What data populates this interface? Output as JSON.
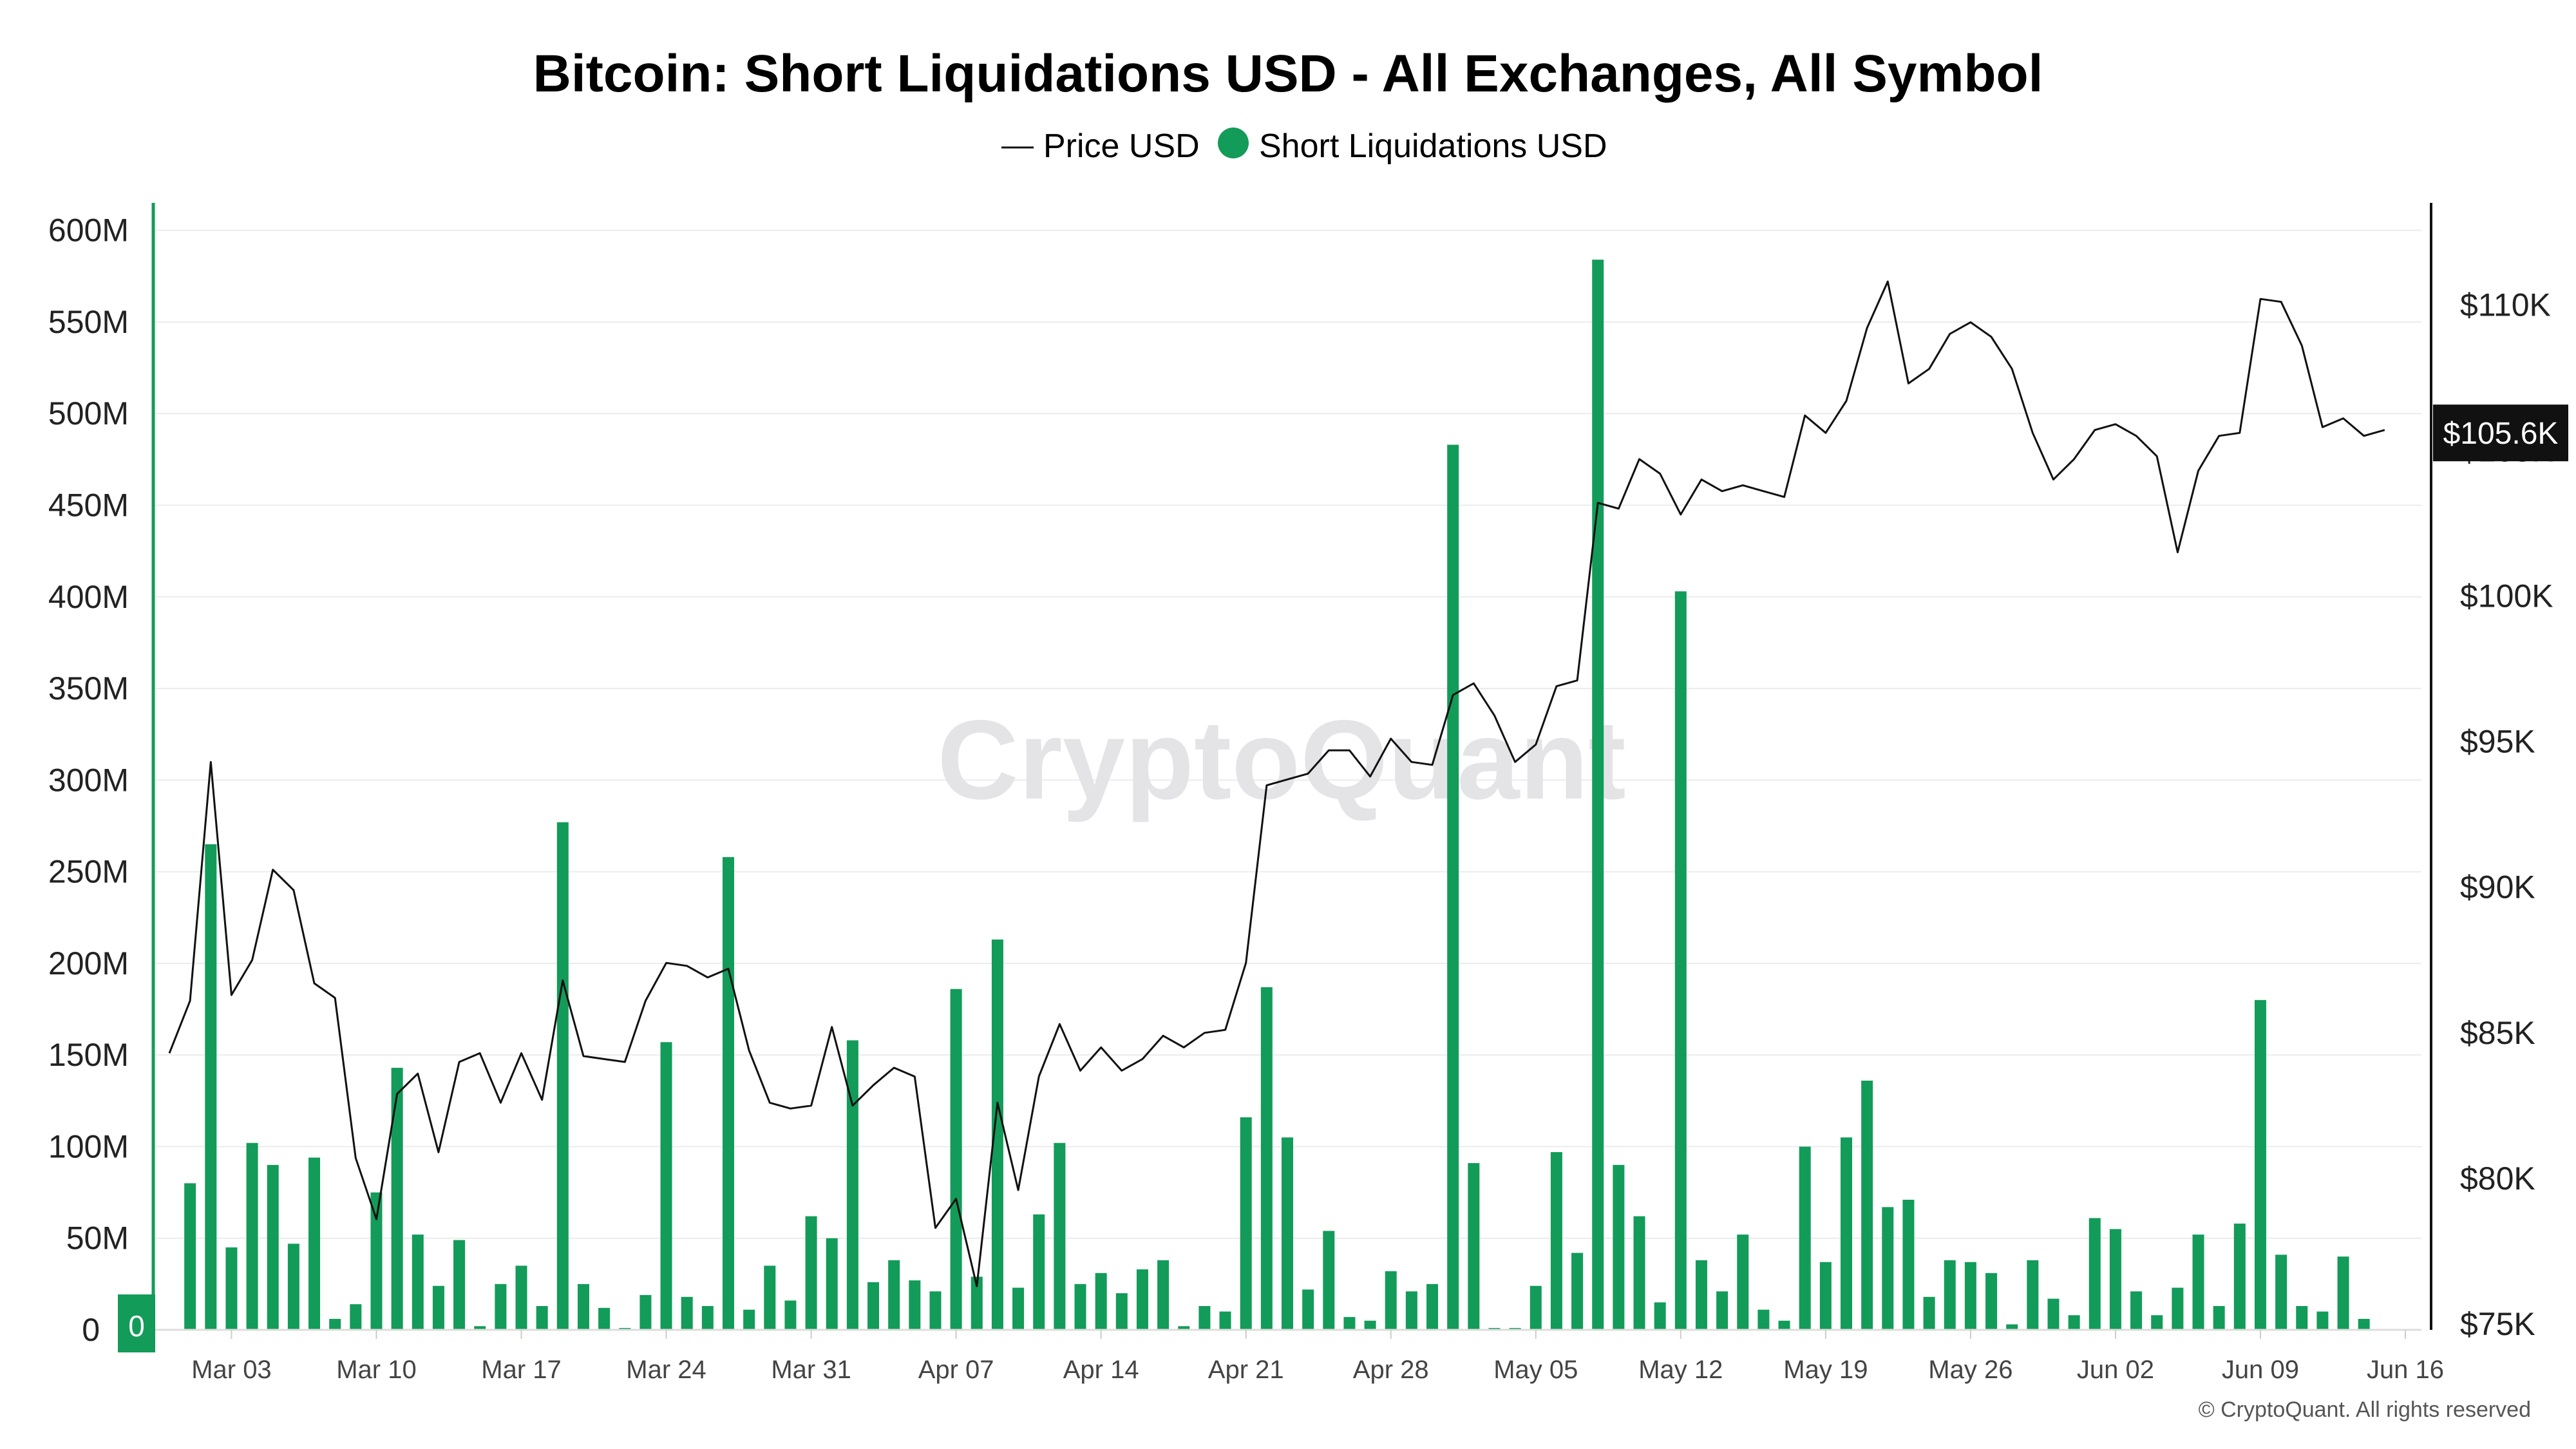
{
  "colors": {
    "bar": "#139b59",
    "axis_left": "#139b59",
    "price_line": "#111111",
    "grid": "#ececec",
    "price_tag_bg": "#111111",
    "watermark": "#e4e4e7"
  },
  "watermark": "CryptoQuant",
  "copyright": "© CryptoQuant. All rights reserved",
  "left_zero_tag": "0",
  "chart_data": {
    "type": "bar",
    "title": "Bitcoin: Short Liquidations USD - All Exchanges, All Symbol",
    "legend": [
      "Price USD",
      "Short Liquidations USD"
    ],
    "legend_placement": "top-center",
    "grid": true,
    "x_start": "2025-02-28",
    "x_ticks": [
      "Mar 03",
      "Mar 10",
      "Mar 17",
      "Mar 24",
      "Mar 31",
      "Apr 07",
      "Apr 14",
      "Apr 21",
      "Apr 28",
      "May 05",
      "May 12",
      "May 19",
      "May 26",
      "Jun 02",
      "Jun 09",
      "Jun 16"
    ],
    "y_left": {
      "label": "",
      "ticks": [
        "0",
        "50M",
        "100M",
        "150M",
        "200M",
        "250M",
        "300M",
        "350M",
        "400M",
        "450M",
        "500M",
        "550M",
        "600M"
      ],
      "ylim": [
        0,
        615000000
      ]
    },
    "y_right": {
      "label": "",
      "ticks": [
        "$75K",
        "$80K",
        "$85K",
        "$90K",
        "$95K",
        "$100K",
        "$105K",
        "$110K"
      ],
      "ylim": [
        74800,
        113500
      ],
      "current_value_label": "$105.6K",
      "current_value": 105600
    },
    "series": [
      {
        "name": "Short Liquidations USD",
        "type": "bar",
        "dates": [
          "2025-03-01",
          "2025-03-02",
          "2025-03-03",
          "2025-03-04",
          "2025-03-05",
          "2025-03-06",
          "2025-03-07",
          "2025-03-08",
          "2025-03-09",
          "2025-03-10",
          "2025-03-11",
          "2025-03-12",
          "2025-03-13",
          "2025-03-14",
          "2025-03-15",
          "2025-03-16",
          "2025-03-17",
          "2025-03-18",
          "2025-03-19",
          "2025-03-20",
          "2025-03-21",
          "2025-03-22",
          "2025-03-23",
          "2025-03-24",
          "2025-03-25",
          "2025-03-26",
          "2025-03-27",
          "2025-03-28",
          "2025-03-29",
          "2025-03-30",
          "2025-03-31",
          "2025-04-01",
          "2025-04-02",
          "2025-04-03",
          "2025-04-04",
          "2025-04-05",
          "2025-04-06",
          "2025-04-07",
          "2025-04-08",
          "2025-04-09",
          "2025-04-10",
          "2025-04-11",
          "2025-04-12",
          "2025-04-13",
          "2025-04-14",
          "2025-04-15",
          "2025-04-16",
          "2025-04-17",
          "2025-04-18",
          "2025-04-19",
          "2025-04-20",
          "2025-04-21",
          "2025-04-22",
          "2025-04-23",
          "2025-04-24",
          "2025-04-25",
          "2025-04-26",
          "2025-04-27",
          "2025-04-28",
          "2025-04-29",
          "2025-04-30",
          "2025-05-01",
          "2025-05-02",
          "2025-05-03",
          "2025-05-04",
          "2025-05-05",
          "2025-05-06",
          "2025-05-07",
          "2025-05-08",
          "2025-05-09",
          "2025-05-10",
          "2025-05-11",
          "2025-05-12",
          "2025-05-13",
          "2025-05-14",
          "2025-05-15",
          "2025-05-16",
          "2025-05-17",
          "2025-05-18",
          "2025-05-19",
          "2025-05-20",
          "2025-05-21",
          "2025-05-22",
          "2025-05-23",
          "2025-05-24",
          "2025-05-25",
          "2025-05-26",
          "2025-05-27",
          "2025-05-28",
          "2025-05-29",
          "2025-05-30",
          "2025-05-31",
          "2025-06-01",
          "2025-06-02",
          "2025-06-03",
          "2025-06-04",
          "2025-06-05",
          "2025-06-06",
          "2025-06-07",
          "2025-06-08",
          "2025-06-09",
          "2025-06-10",
          "2025-06-11",
          "2025-06-12",
          "2025-06-13",
          "2025-06-14"
        ],
        "values": [
          80000000,
          265000000,
          45000000,
          102000000,
          90000000,
          47000000,
          94000000,
          6000000,
          14000000,
          75000000,
          143000000,
          52000000,
          24000000,
          49000000,
          2000000,
          25000000,
          35000000,
          13000000,
          277000000,
          25000000,
          12000000,
          1000000,
          19000000,
          157000000,
          18000000,
          13000000,
          258000000,
          11000000,
          35000000,
          16000000,
          62000000,
          50000000,
          158000000,
          26000000,
          38000000,
          27000000,
          21000000,
          186000000,
          29000000,
          213000000,
          23000000,
          63000000,
          102000000,
          25000000,
          31000000,
          20000000,
          33000000,
          38000000,
          2000000,
          13000000,
          10000000,
          116000000,
          187000000,
          105000000,
          22000000,
          54000000,
          7000000,
          5000000,
          32000000,
          21000000,
          25000000,
          483000000,
          91000000,
          1000000,
          1000000,
          24000000,
          97000000,
          42000000,
          584000000,
          90000000,
          62000000,
          15000000,
          403000000,
          38000000,
          21000000,
          52000000,
          11000000,
          5000000,
          100000000,
          37000000,
          105000000,
          136000000,
          67000000,
          71000000,
          18000000,
          38000000,
          37000000,
          31000000,
          3000000,
          38000000,
          17000000,
          8000000,
          61000000,
          55000000,
          21000000,
          8000000,
          23000000,
          52000000,
          13000000,
          58000000,
          180000000,
          41000000,
          13000000,
          10000000,
          40000000,
          6000000
        ]
      },
      {
        "name": "Price USD",
        "type": "line",
        "dates": [
          "2025-02-28",
          "2025-03-01",
          "2025-03-02",
          "2025-03-03",
          "2025-03-04",
          "2025-03-05",
          "2025-03-06",
          "2025-03-07",
          "2025-03-08",
          "2025-03-09",
          "2025-03-10",
          "2025-03-11",
          "2025-03-12",
          "2025-03-13",
          "2025-03-14",
          "2025-03-15",
          "2025-03-16",
          "2025-03-17",
          "2025-03-18",
          "2025-03-19",
          "2025-03-20",
          "2025-03-21",
          "2025-03-22",
          "2025-03-23",
          "2025-03-24",
          "2025-03-25",
          "2025-03-26",
          "2025-03-27",
          "2025-03-28",
          "2025-03-29",
          "2025-03-30",
          "2025-03-31",
          "2025-04-01",
          "2025-04-02",
          "2025-04-03",
          "2025-04-04",
          "2025-04-05",
          "2025-04-06",
          "2025-04-07",
          "2025-04-08",
          "2025-04-09",
          "2025-04-10",
          "2025-04-11",
          "2025-04-12",
          "2025-04-13",
          "2025-04-14",
          "2025-04-15",
          "2025-04-16",
          "2025-04-17",
          "2025-04-18",
          "2025-04-19",
          "2025-04-20",
          "2025-04-21",
          "2025-04-22",
          "2025-04-23",
          "2025-04-24",
          "2025-04-25",
          "2025-04-26",
          "2025-04-27",
          "2025-04-28",
          "2025-04-29",
          "2025-04-30",
          "2025-05-01",
          "2025-05-02",
          "2025-05-03",
          "2025-05-04",
          "2025-05-05",
          "2025-05-06",
          "2025-05-07",
          "2025-05-08",
          "2025-05-09",
          "2025-05-10",
          "2025-05-11",
          "2025-05-12",
          "2025-05-13",
          "2025-05-14",
          "2025-05-15",
          "2025-05-16",
          "2025-05-17",
          "2025-05-18",
          "2025-05-19",
          "2025-05-20",
          "2025-05-21",
          "2025-05-22",
          "2025-05-23",
          "2025-05-24",
          "2025-05-25",
          "2025-05-26",
          "2025-05-27",
          "2025-05-28",
          "2025-05-29",
          "2025-05-30",
          "2025-05-31",
          "2025-06-01",
          "2025-06-02",
          "2025-06-03",
          "2025-06-04",
          "2025-06-05",
          "2025-06-06",
          "2025-06-07",
          "2025-06-08",
          "2025-06-09",
          "2025-06-10",
          "2025-06-11",
          "2025-06-12",
          "2025-06-13",
          "2025-06-14",
          "2025-06-15"
        ],
        "values": [
          84300,
          86100,
          94300,
          86300,
          87500,
          90600,
          89900,
          86700,
          86200,
          80700,
          78600,
          82900,
          83600,
          80900,
          84000,
          84300,
          82600,
          84300,
          82700,
          86800,
          84200,
          84100,
          84000,
          86100,
          87400,
          87300,
          86900,
          87200,
          84400,
          82600,
          82400,
          82500,
          85200,
          82500,
          83200,
          83800,
          83500,
          78300,
          79300,
          76300,
          82600,
          79600,
          83500,
          85300,
          83700,
          84500,
          83700,
          84100,
          84900,
          84500,
          85000,
          85100,
          87400,
          93500,
          93700,
          93900,
          94700,
          94700,
          93800,
          95100,
          94300,
          94200,
          96600,
          97000,
          95900,
          94300,
          94900,
          96900,
          97100,
          103200,
          103000,
          104700,
          104200,
          102800,
          104000,
          103600,
          103800,
          103600,
          103400,
          106200,
          105600,
          106700,
          109200,
          110800,
          107300,
          107800,
          109000,
          109400,
          108900,
          107800,
          105600,
          104000,
          104700,
          105700,
          105900,
          105500,
          104800,
          101500,
          104300,
          105500,
          105600,
          110200,
          110100,
          108600,
          105800,
          106100,
          105500,
          105700
        ]
      }
    ]
  }
}
